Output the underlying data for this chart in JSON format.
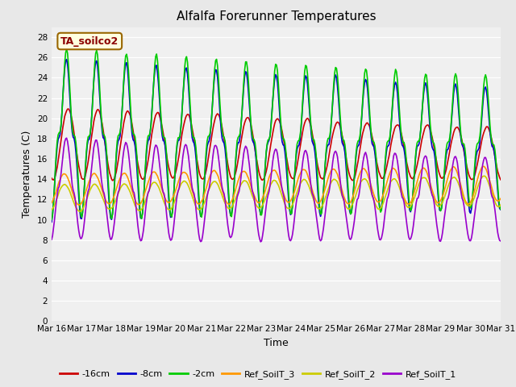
{
  "title": "Alfalfa Forerunner Temperatures",
  "xlabel": "Time",
  "ylabel": "Temperatures (C)",
  "ylim": [
    0,
    29
  ],
  "yticks": [
    0,
    2,
    4,
    6,
    8,
    10,
    12,
    14,
    16,
    18,
    20,
    22,
    24,
    26,
    28
  ],
  "legend_label": "TA_soilco2",
  "series": {
    "-16cm": {
      "color": "#cc0000",
      "lw": 1.2
    },
    "-8cm": {
      "color": "#0000cc",
      "lw": 1.2
    },
    "-2cm": {
      "color": "#00cc00",
      "lw": 1.2
    },
    "Ref_SoilT_3": {
      "color": "#ff9900",
      "lw": 1.2
    },
    "Ref_SoilT_2": {
      "color": "#cccc00",
      "lw": 1.2
    },
    "Ref_SoilT_1": {
      "color": "#9900cc",
      "lw": 1.2
    }
  },
  "xtick_labels": [
    "Mar 16",
    "Mar 17",
    "Mar 18",
    "Mar 19",
    "Mar 20",
    "Mar 21",
    "Mar 22",
    "Mar 23",
    "Mar 24",
    "Mar 25",
    "Mar 26",
    "Mar 27",
    "Mar 28",
    "Mar 29",
    "Mar 30",
    "Mar 31"
  ],
  "fig_bg_color": "#e8e8e8",
  "plot_bg_color": "#f0f0f0",
  "grid_color": "#ffffff",
  "title_fontsize": 11,
  "axis_fontsize": 9,
  "tick_fontsize": 7.5,
  "legend_fontsize": 8
}
